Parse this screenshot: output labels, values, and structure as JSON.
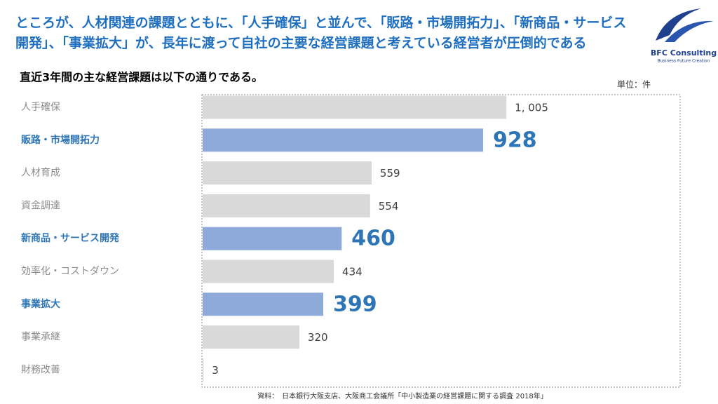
{
  "chart_data": {
    "type": "barh",
    "title": [
      "ところが、人材関連の課題とともに、「人手確保」と並んで、「販路・市場開拓力」、「新商品・サービス",
      "開発」、「事業拡大」が、長年に渡って自社の主要な経営課題と考えている経営者が圧倒的である"
    ],
    "subtitle": "直近3年間の主な経営課題は以下の通りである。",
    "unit": "単位：件",
    "source": "資料：　日本銀行大阪支店、大阪商工会議所「中小製造業の経営課題に関する調査 2018年」",
    "logo": {
      "name": "BFC Consulting",
      "tagline": "Business Future Creation"
    },
    "categories": [
      "人手確保",
      "販路・市場開拓力",
      "人材育成",
      "資金調達",
      "新商品・サービス開発",
      "効率化・コストダウン",
      "事業拡大",
      "事業承継",
      "財務改善"
    ],
    "values": [
      1005,
      928,
      559,
      554,
      460,
      434,
      399,
      320,
      3
    ],
    "value_labels": [
      "1, 005",
      "928",
      "559",
      "554",
      "460",
      "434",
      "399",
      "320",
      "3"
    ],
    "highlighted": [
      1,
      4,
      6
    ],
    "color": "#d9d9d9",
    "highlight_color": "#8eaadb",
    "highlight_text_color": "#2e75b6",
    "text_color": "#8c8c8c",
    "xlim": [
      0,
      1580
    ]
  }
}
